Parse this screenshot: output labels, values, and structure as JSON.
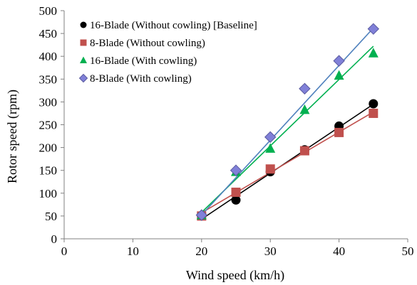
{
  "chart_data": {
    "type": "scatter",
    "title": "",
    "xlabel": "Wind speed (km/h)",
    "ylabel": "Rotor speed (rpm)",
    "xlim": [
      0,
      50
    ],
    "ylim": [
      0,
      500
    ],
    "xticks": [
      0,
      10,
      20,
      30,
      40,
      50
    ],
    "yticks": [
      0,
      50,
      100,
      150,
      200,
      250,
      300,
      350,
      400,
      450,
      500
    ],
    "grid": false,
    "legend_position": "top-left",
    "trendlines": "linear",
    "series": [
      {
        "name": "16-Blade (Without cowling) [Baseline]",
        "marker": "circle",
        "color": "#000000",
        "x": [
          20,
          25,
          30,
          35,
          40,
          45
        ],
        "y": [
          50,
          85,
          147,
          195,
          247,
          296
        ],
        "fit_y": [
          43,
          295
        ]
      },
      {
        "name": "8-Blade (Without cowling)",
        "marker": "square",
        "color": "#c0504d",
        "x": [
          20,
          25,
          30,
          35,
          40,
          45
        ],
        "y": [
          50,
          102,
          153,
          193,
          233,
          275
        ],
        "fit_y": [
          57,
          278
        ]
      },
      {
        "name": "16-Blade (With cowling)",
        "marker": "triangle",
        "color": "#00b050",
        "x": [
          20,
          25,
          30,
          35,
          40,
          45
        ],
        "y": [
          52,
          147,
          198,
          283,
          358,
          407
        ],
        "fit_y": [
          58,
          422
        ]
      },
      {
        "name": "8-Blade (With cowling)",
        "marker": "diamond",
        "color": "#8080d8",
        "x": [
          20,
          25,
          30,
          35,
          40,
          45
        ],
        "y": [
          52,
          150,
          223,
          329,
          390,
          460
        ],
        "fit_y": [
          52,
          462
        ]
      }
    ],
    "trendline_colors": [
      "#000000",
      "#c0504d",
      "#00b050",
      "#4f81bd"
    ]
  }
}
